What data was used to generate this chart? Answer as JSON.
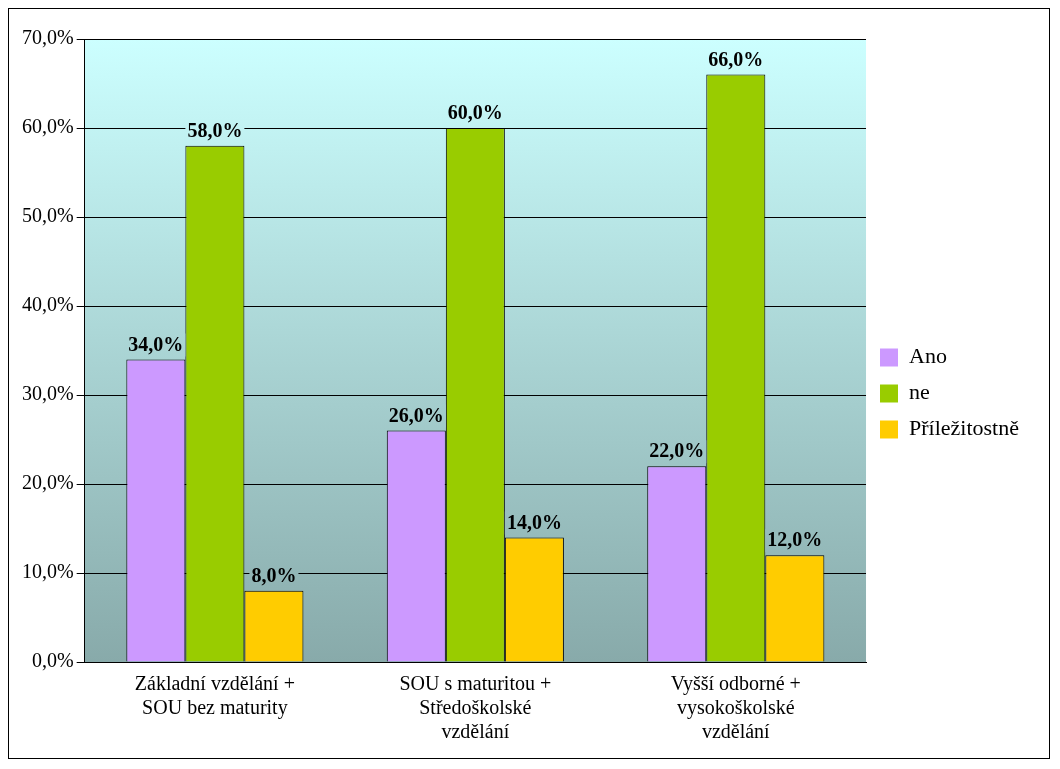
{
  "chart_data": {
    "type": "bar",
    "categories": [
      "Základní vzdělání + SOU bez maturity",
      "SOU s maturitou + Středoškolské vzdělání",
      "Vyšší odborné + vysokoškolské vzdělání"
    ],
    "series": [
      {
        "name": "Ano",
        "color": "#cc99ff",
        "values": [
          34,
          26,
          22
        ],
        "value_labels": [
          "34,0%",
          "26,0%",
          "22,0%"
        ]
      },
      {
        "name": "ne",
        "color": "#99cc00",
        "values": [
          58,
          60,
          66
        ],
        "value_labels": [
          "58,0%",
          "60,0%",
          "66,0%"
        ]
      },
      {
        "name": "Příležitostně",
        "color": "#ffcc00",
        "values": [
          8,
          14,
          12
        ],
        "value_labels": [
          "8,0%",
          "14,0%",
          "12,0%"
        ]
      }
    ],
    "ylim": [
      0,
      70
    ],
    "yticks": [
      {
        "value": 0,
        "label": "0,0%"
      },
      {
        "value": 10,
        "label": "10,0%"
      },
      {
        "value": 20,
        "label": "20,0%"
      },
      {
        "value": 30,
        "label": "30,0%"
      },
      {
        "value": 40,
        "label": "40,0%"
      },
      {
        "value": 50,
        "label": "50,0%"
      },
      {
        "value": 60,
        "label": "60,0%"
      },
      {
        "value": 70,
        "label": "70,0%"
      }
    ],
    "grid": "y",
    "legend": "right"
  }
}
